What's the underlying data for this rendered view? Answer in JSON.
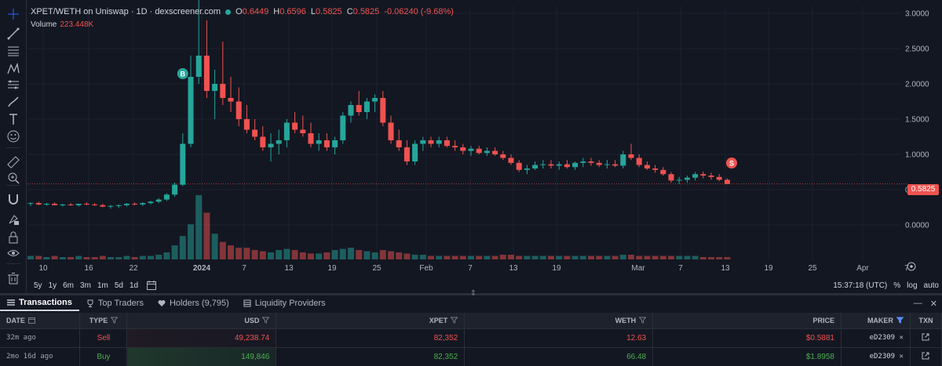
{
  "legend": {
    "title": "XPET/WETH on Uniswap · 1D · dexscreener.com",
    "o_label": "O",
    "o": "0.6449",
    "h_label": "H",
    "h": "0.6596",
    "l_label": "L",
    "l": "0.5825",
    "c_label": "C",
    "c": "0.5825",
    "change": "-0.06240 (-9.68%)",
    "volume_label": "Volume",
    "volume": "223.448K"
  },
  "colors": {
    "up": "#26a69a",
    "down": "#ef5350",
    "background": "#131722"
  },
  "current_price": "0.5825",
  "markers": {
    "buy": "B",
    "sell": "S"
  },
  "toolbar": [
    "crosshair-icon",
    "trend-line-icon",
    "fib-icon",
    "pattern-icon",
    "prediction-icon",
    "brush-icon",
    "text-icon",
    "emoji-icon",
    "ruler-icon",
    "zoom-icon",
    "magnet-icon",
    "lock-drawing-icon",
    "lock-icon",
    "eye-icon",
    "trash-icon"
  ],
  "range_buttons": [
    "5y",
    "1y",
    "6m",
    "3m",
    "1m",
    "5d",
    "1d"
  ],
  "time_readout": "15:37:18 (UTC)",
  "scale_options": {
    "percent": "%",
    "log": "log",
    "auto": "auto"
  },
  "tabs": [
    {
      "label": "Transactions",
      "icon": "list-icon"
    },
    {
      "label": "Top Traders",
      "icon": "trophy-icon"
    },
    {
      "label": "Holders (9,795)",
      "icon": "heart-icon"
    },
    {
      "label": "Liquidity Providers",
      "icon": "layers-icon"
    }
  ],
  "table": {
    "headers": {
      "date": "DATE",
      "type": "TYPE",
      "usd": "USD",
      "xpet": "XPET",
      "weth": "WETH",
      "price": "PRICE",
      "maker": "MAKER",
      "txn": "TXN"
    },
    "rows": [
      {
        "date": "32m ago",
        "type": "Sell",
        "usd": "49,238.74",
        "xpet": "82,352",
        "weth": "12.63",
        "price": "$0.5881",
        "maker": "eD2309"
      },
      {
        "date": "2mo 16d ago",
        "type": "Buy",
        "usd": "149,846",
        "xpet": "82,352",
        "weth": "66.48",
        "price": "$1.8958",
        "maker": "eD2309"
      }
    ]
  },
  "chart_data": {
    "type": "candlestick",
    "y_ticks": [
      "3.0000",
      "2.5000",
      "2.0000",
      "1.5000",
      "1.0000",
      "0.5000",
      "0.0000"
    ],
    "ylim": [
      -0.5,
      3.1
    ],
    "x_ticks": [
      "10",
      "16",
      "22",
      "2024",
      "7",
      "13",
      "19",
      "25",
      "Feb",
      "7",
      "13",
      "19",
      "Mar",
      "7",
      "13",
      "19",
      "25",
      "Apr",
      "7"
    ],
    "grid": true,
    "candles": [
      [
        0.3,
        0.32,
        0.27,
        0.31
      ],
      [
        0.31,
        0.33,
        0.28,
        0.29
      ],
      [
        0.29,
        0.31,
        0.27,
        0.3
      ],
      [
        0.3,
        0.32,
        0.28,
        0.28
      ],
      [
        0.28,
        0.3,
        0.26,
        0.29
      ],
      [
        0.29,
        0.31,
        0.27,
        0.28
      ],
      [
        0.28,
        0.3,
        0.26,
        0.3
      ],
      [
        0.3,
        0.32,
        0.28,
        0.29
      ],
      [
        0.29,
        0.31,
        0.27,
        0.28
      ],
      [
        0.28,
        0.3,
        0.25,
        0.26
      ],
      [
        0.26,
        0.28,
        0.23,
        0.27
      ],
      [
        0.27,
        0.29,
        0.24,
        0.28
      ],
      [
        0.28,
        0.31,
        0.26,
        0.3
      ],
      [
        0.3,
        0.32,
        0.28,
        0.29
      ],
      [
        0.29,
        0.32,
        0.27,
        0.31
      ],
      [
        0.31,
        0.34,
        0.29,
        0.33
      ],
      [
        0.33,
        0.38,
        0.31,
        0.36
      ],
      [
        0.36,
        0.45,
        0.34,
        0.43
      ],
      [
        0.43,
        0.6,
        0.4,
        0.57
      ],
      [
        0.57,
        1.3,
        0.55,
        1.15
      ],
      [
        1.15,
        2.4,
        1.1,
        2.1
      ],
      [
        2.1,
        3.2,
        2.0,
        2.4
      ],
      [
        2.4,
        2.9,
        1.8,
        1.9
      ],
      [
        1.9,
        2.2,
        1.5,
        2.0
      ],
      [
        2.0,
        2.6,
        1.7,
        1.8
      ],
      [
        1.8,
        2.1,
        1.6,
        1.75
      ],
      [
        1.75,
        1.95,
        1.4,
        1.5
      ],
      [
        1.5,
        1.7,
        1.3,
        1.35
      ],
      [
        1.35,
        1.5,
        1.2,
        1.25
      ],
      [
        1.25,
        1.4,
        1.05,
        1.1
      ],
      [
        1.1,
        1.3,
        0.9,
        1.15
      ],
      [
        1.15,
        1.35,
        1.0,
        1.2
      ],
      [
        1.2,
        1.5,
        1.1,
        1.45
      ],
      [
        1.45,
        1.6,
        1.3,
        1.35
      ],
      [
        1.35,
        1.55,
        1.25,
        1.3
      ],
      [
        1.3,
        1.45,
        1.1,
        1.15
      ],
      [
        1.15,
        1.3,
        1.05,
        1.2
      ],
      [
        1.2,
        1.3,
        1.05,
        1.1
      ],
      [
        1.1,
        1.25,
        1.0,
        1.2
      ],
      [
        1.2,
        1.6,
        1.15,
        1.55
      ],
      [
        1.55,
        1.75,
        1.45,
        1.7
      ],
      [
        1.7,
        1.9,
        1.55,
        1.6
      ],
      [
        1.6,
        1.8,
        1.5,
        1.75
      ],
      [
        1.75,
        1.85,
        1.6,
        1.8
      ],
      [
        1.8,
        1.9,
        1.4,
        1.45
      ],
      [
        1.45,
        1.55,
        1.15,
        1.2
      ],
      [
        1.2,
        1.35,
        1.05,
        1.1
      ],
      [
        1.1,
        1.2,
        0.85,
        0.9
      ],
      [
        0.9,
        1.2,
        0.85,
        1.15
      ],
      [
        1.15,
        1.25,
        1.05,
        1.2
      ],
      [
        1.2,
        1.25,
        1.1,
        1.15
      ],
      [
        1.15,
        1.25,
        1.1,
        1.2
      ],
      [
        1.2,
        1.25,
        1.1,
        1.12
      ],
      [
        1.12,
        1.2,
        1.05,
        1.1
      ],
      [
        1.1,
        1.15,
        1.0,
        1.05
      ],
      [
        1.05,
        1.12,
        0.98,
        1.08
      ],
      [
        1.08,
        1.12,
        1.0,
        1.02
      ],
      [
        1.02,
        1.1,
        0.98,
        1.05
      ],
      [
        1.05,
        1.1,
        0.98,
        1.0
      ],
      [
        1.0,
        1.05,
        0.92,
        0.95
      ],
      [
        0.95,
        1.0,
        0.85,
        0.88
      ],
      [
        0.88,
        0.92,
        0.75,
        0.78
      ],
      [
        0.78,
        0.85,
        0.72,
        0.8
      ],
      [
        0.8,
        0.9,
        0.78,
        0.85
      ],
      [
        0.85,
        0.92,
        0.8,
        0.86
      ],
      [
        0.86,
        0.92,
        0.8,
        0.84
      ],
      [
        0.84,
        0.9,
        0.78,
        0.86
      ],
      [
        0.86,
        0.92,
        0.8,
        0.82
      ],
      [
        0.82,
        0.9,
        0.78,
        0.88
      ],
      [
        0.88,
        0.95,
        0.82,
        0.9
      ],
      [
        0.9,
        0.95,
        0.84,
        0.88
      ],
      [
        0.88,
        0.92,
        0.82,
        0.85
      ],
      [
        0.85,
        0.92,
        0.8,
        0.86
      ],
      [
        0.86,
        0.92,
        0.82,
        0.84
      ],
      [
        0.84,
        1.05,
        0.8,
        1.0
      ],
      [
        1.0,
        1.15,
        0.92,
        0.95
      ],
      [
        0.95,
        1.0,
        0.82,
        0.85
      ],
      [
        0.85,
        0.9,
        0.78,
        0.8
      ],
      [
        0.8,
        0.85,
        0.74,
        0.78
      ],
      [
        0.78,
        0.82,
        0.7,
        0.72
      ],
      [
        0.72,
        0.75,
        0.6,
        0.63
      ],
      [
        0.63,
        0.68,
        0.58,
        0.64
      ],
      [
        0.64,
        0.7,
        0.6,
        0.67
      ],
      [
        0.67,
        0.75,
        0.63,
        0.72
      ],
      [
        0.72,
        0.76,
        0.66,
        0.7
      ],
      [
        0.7,
        0.74,
        0.64,
        0.68
      ],
      [
        0.68,
        0.72,
        0.62,
        0.64
      ],
      [
        0.64,
        0.66,
        0.58,
        0.58
      ]
    ],
    "volume": [
      3,
      3,
      2,
      3,
      2,
      2,
      3,
      2,
      2,
      3,
      2,
      2,
      3,
      2,
      3,
      3,
      4,
      6,
      12,
      20,
      30,
      55,
      40,
      22,
      15,
      12,
      10,
      10,
      8,
      7,
      6,
      8,
      9,
      8,
      6,
      5,
      5,
      6,
      8,
      9,
      10,
      8,
      7,
      6,
      8,
      7,
      6,
      5,
      4,
      4,
      3,
      3,
      3,
      3,
      3,
      3,
      3,
      3,
      3,
      4,
      4,
      3,
      3,
      3,
      3,
      3,
      3,
      3,
      3,
      3,
      3,
      3,
      3,
      3,
      4,
      4,
      3,
      3,
      3,
      3,
      3,
      3,
      3,
      3,
      2,
      2,
      2,
      2
    ]
  }
}
